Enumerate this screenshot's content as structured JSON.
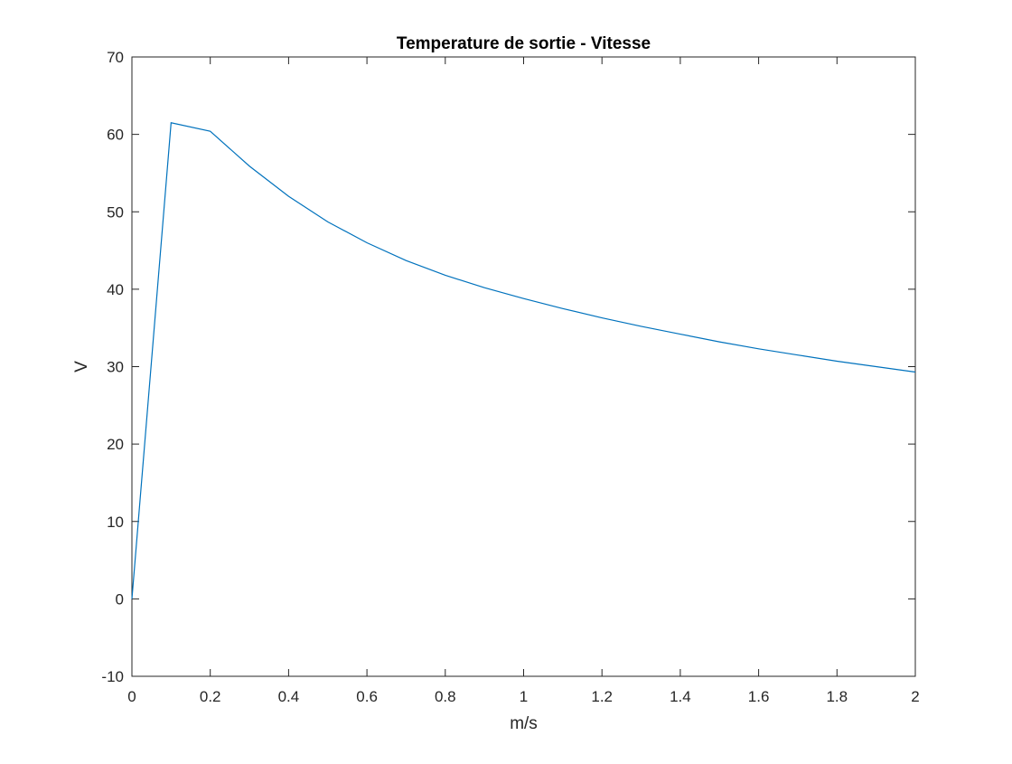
{
  "chart_data": {
    "type": "line",
    "title": "Temperature de sortie - Vitesse",
    "xlabel": "m/s",
    "ylabel": "V",
    "xlim": [
      0,
      2
    ],
    "ylim": [
      -10,
      70
    ],
    "xticks": [
      0,
      0.2,
      0.4,
      0.6,
      0.8,
      1,
      1.2,
      1.4,
      1.6,
      1.8,
      2
    ],
    "xtick_labels": [
      "0",
      "0.2",
      "0.4",
      "0.6",
      "0.8",
      "1",
      "1.2",
      "1.4",
      "1.6",
      "1.8",
      "2"
    ],
    "yticks": [
      -10,
      0,
      10,
      20,
      30,
      40,
      50,
      60,
      70
    ],
    "ytick_labels": [
      "-10",
      "0",
      "10",
      "20",
      "30",
      "40",
      "50",
      "60",
      "70"
    ],
    "grid": false,
    "series": [
      {
        "color": "#0072BD",
        "x": [
          0,
          0.1,
          0.2,
          0.3,
          0.4,
          0.5,
          0.6,
          0.7,
          0.8,
          0.9,
          1.0,
          1.1,
          1.2,
          1.3,
          1.4,
          1.5,
          1.6,
          1.7,
          1.8,
          1.9,
          2.0
        ],
        "y": [
          0,
          61.5,
          60.4,
          55.9,
          52.0,
          48.7,
          46.0,
          43.7,
          41.8,
          40.2,
          38.8,
          37.5,
          36.3,
          35.2,
          34.2,
          33.2,
          32.3,
          31.5,
          30.7,
          30.0,
          29.3
        ]
      }
    ]
  }
}
